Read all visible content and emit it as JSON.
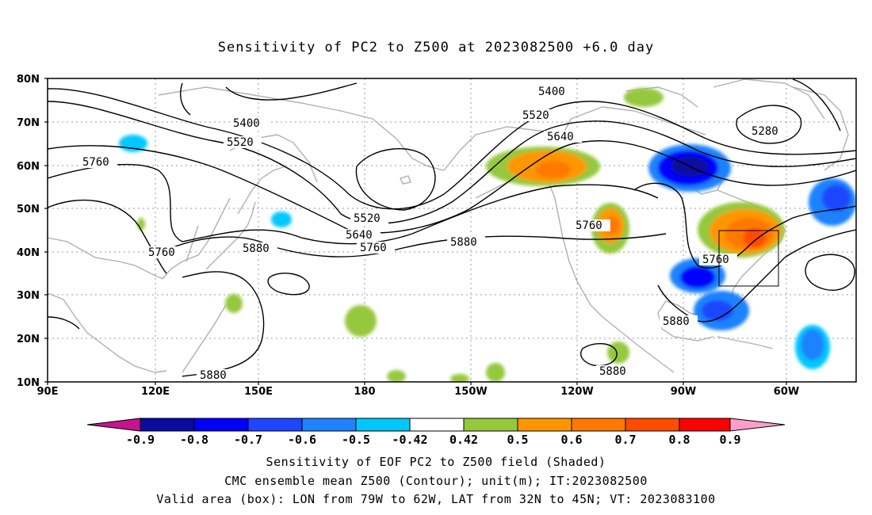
{
  "title": "Sensitivity of PC2 to Z500 at 2023082500 +6.0 day",
  "y_labels": [
    "80N",
    "70N",
    "60N",
    "50N",
    "40N",
    "30N",
    "20N",
    "10N"
  ],
  "x_labels": [
    "90E",
    "120E",
    "150E",
    "180",
    "150W",
    "120W",
    "90W",
    "60W"
  ],
  "contour_labels": [
    "5400",
    "5400",
    "5520",
    "5520",
    "5520",
    "5640",
    "5640",
    "5760",
    "5760",
    "5760",
    "5760",
    "5760",
    "5880",
    "5880",
    "5880",
    "5880",
    "5880",
    "5280"
  ],
  "colorbar": {
    "ticks": [
      "-0.9",
      "-0.8",
      "-0.7",
      "-0.6",
      "-0.5",
      "-0.42",
      "0.42",
      "0.5",
      "0.6",
      "0.7",
      "0.8",
      "0.9"
    ],
    "colors": {
      "lt_m09": "#c8148c",
      "m09_m08": "#0a0aa0",
      "m08_m07": "#0000ff",
      "m07_m06": "#1e46ff",
      "m06_m05": "#1e82ff",
      "m05_m042": "#00c8ff",
      "m042_042": "#ffffff",
      "p042_p05": "#96c83c",
      "p05_p06": "#ff9600",
      "p06_p07": "#ff7800",
      "p07_p08": "#ff4b00",
      "p08_p09": "#ff0000",
      "gt_p09": "#ff9ec8"
    }
  },
  "footer": {
    "line1": "Sensitivity of EOF PC2 to Z500 field (Shaded)",
    "line2": "CMC ensemble mean Z500 (Contour); unit(m); IT:2023082500",
    "line3": "Valid area (box): LON from 79W to 62W, LAT from 32N to 45N; VT: 2023083100"
  }
}
